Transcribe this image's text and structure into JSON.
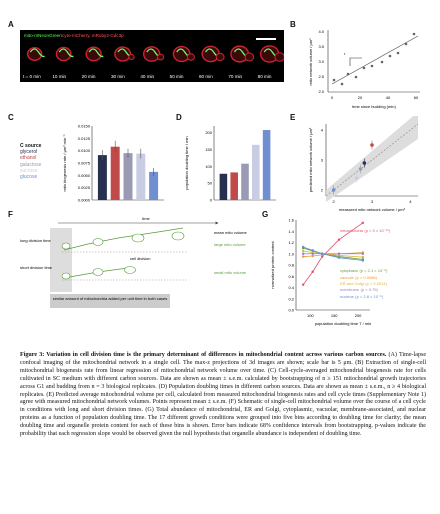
{
  "panelA": {
    "label": "A",
    "stain1": "mito-mNeonGreen",
    "stain2": "cyto-mCherry, mRuby2-Cdc3p",
    "timepoints": [
      "t = 0 min",
      "10 min",
      "20 min",
      "30 min",
      "40 min",
      "50 min",
      "60 min",
      "70 min",
      "80 min"
    ]
  },
  "panelB": {
    "label": "B",
    "ylabel": "mito network volume / μm³",
    "xlabel": "time since budding (min)",
    "slope_label": "r",
    "yticks": [
      "2.0",
      "2.5",
      "3.0",
      "3.5",
      "4.0"
    ],
    "xticks": [
      "0",
      "20",
      "40",
      "60"
    ]
  },
  "panelC": {
    "label": "C",
    "legend_title": "C source",
    "legend": [
      "glycerol",
      "ethanol",
      "galactose",
      "sucrose",
      "glucose"
    ],
    "legend_colors": [
      "#27304f",
      "#c04a4a",
      "#9a9ab5",
      "#c9cde3",
      "#6f8fd1"
    ],
    "ylabel": "mito biogenesis rate / μm³ min⁻¹",
    "yticks": [
      "0.0000",
      "0.0025",
      "0.0050",
      "0.0075",
      "0.0100",
      "0.0125",
      "0.0150"
    ]
  },
  "panelD": {
    "label": "D",
    "ylabel": "population doubling time / min",
    "yticks": [
      "0",
      "50",
      "100",
      "150",
      "200"
    ]
  },
  "panelE": {
    "label": "E",
    "ylabel": "predicted mito network volume / μm³",
    "xlabel": "measured mito network volume / μm³",
    "ticks": [
      "2",
      "3",
      "4"
    ]
  },
  "panelF": {
    "label": "F",
    "time": "time",
    "long": "long division time",
    "short": "short division time",
    "large": "large mito volume",
    "small": "small mito volume",
    "mean": "mean mito volume",
    "cell_division": "cell division",
    "note": "similar amount of mitochondria added per unit time in both cases"
  },
  "panelG": {
    "label": "G",
    "ylabel": "normalized protein content",
    "xlabel": "population doubling time T / min",
    "yticks": [
      "0.0",
      "0.2",
      "0.4",
      "0.6",
      "0.8",
      "1.0",
      "1.2",
      "1.4",
      "1.6"
    ],
    "xticks": [
      "100",
      "150",
      "200"
    ],
    "series": [
      {
        "name": "mitochondria",
        "p": "(p < 3 × 10⁻¹⁰)",
        "color": "#e0506a"
      },
      {
        "name": "cytoplasm",
        "p": "(p = 2.1 × 10⁻⁸)",
        "color": "#6a9c3a"
      },
      {
        "name": "vacuole",
        "p": "(p = 0.0066)",
        "color": "#e69b36"
      },
      {
        "name": "ER and Golgi",
        "p": "(p = 0.0014)",
        "color": "#d6b63c"
      },
      {
        "name": "membrane",
        "p": "(p = 0.79)",
        "color": "#9c7cc9"
      },
      {
        "name": "nucleus",
        "p": "(p = 2.8 × 10⁻⁵)",
        "color": "#5e8fd6"
      }
    ]
  },
  "chart_data": [
    {
      "type": "bar",
      "categories": [
        "glycerol",
        "ethanol",
        "galactose",
        "sucrose",
        "glucose"
      ],
      "values": [
        0.0091,
        0.0108,
        0.0095,
        0.0094,
        0.0057
      ],
      "errors": [
        0.001,
        0.0012,
        0.0009,
        0.001,
        0.0008
      ],
      "ylabel": "mito biogenesis rate / μm³ min⁻¹",
      "ylim": [
        0,
        0.015
      ]
    },
    {
      "type": "bar",
      "categories": [
        "glycerol",
        "ethanol",
        "galactose",
        "sucrose",
        "glucose"
      ],
      "values": [
        78,
        82,
        108,
        164,
        208
      ],
      "ylabel": "population doubling time / min",
      "ylim": [
        0,
        220
      ]
    },
    {
      "type": "scatter",
      "x": [
        2.0,
        2.6,
        2.7,
        2.8,
        3.0
      ],
      "y": [
        2.0,
        2.4,
        2.7,
        2.9,
        3.5
      ],
      "xlabel": "measured mito network volume / μm³",
      "ylabel": "predicted mito network volume / μm³"
    },
    {
      "type": "line",
      "x": [
        85,
        105,
        125,
        160,
        210
      ],
      "series": [
        {
          "name": "mitochondria",
          "values": [
            0.45,
            0.68,
            0.95,
            1.25,
            1.55
          ]
        },
        {
          "name": "cytoplasm",
          "values": [
            1.1,
            1.05,
            1.0,
            0.95,
            0.9
          ]
        },
        {
          "name": "vacuole",
          "values": [
            0.95,
            0.96,
            0.98,
            1.0,
            1.02
          ]
        },
        {
          "name": "ER and Golgi",
          "values": [
            1.05,
            1.02,
            1.0,
            0.97,
            0.94
          ]
        },
        {
          "name": "membrane",
          "values": [
            1.0,
            1.0,
            1.0,
            1.0,
            1.0
          ]
        },
        {
          "name": "nucleus",
          "values": [
            1.12,
            1.06,
            1.0,
            0.93,
            0.88
          ]
        }
      ],
      "xlabel": "population doubling time T / min",
      "ylabel": "normalized protein content",
      "ylim": [
        0,
        1.6
      ]
    }
  ],
  "caption": {
    "title": "Figure 3: Variation in cell division time is the primary determinant of differences in mitochondrial content across various carbon sources.",
    "A": "(A) Time-lapse confocal imaging of the mitochondrial network in a single cell. The max-z projections of 3d images are shown; scale bar is 5 μm.",
    "B": "(B) Extraction of single-cell mitochondrial biogenesis rate from linear regression of mitochondrial network volume over time.",
    "C": "(C) Cell-cycle-averaged mitochondrial biogenesis rate for cells cultivated in SC medium with different carbon sources. Data are shown as mean ± s.e.m. calculated by bootstrapping of n ≥ 151 mitochondrial growth trajectories across G1 and budding from n = 3 biological replicates.",
    "D": "(D) Population doubling times in different carbon sources. Data are shown as mean ± s.e.m., n ≥ 4 biological replicates.",
    "E": "(E) Predicted average mitochondrial volume per cell, calculated from measured mitochondrial biogenesis rates and cell cycle times (Supplementary Note 1) agree with measured mitochondrial network volumes. Points represent mean ± s.e.m.",
    "F": "(F) Schematic of single-cell mitochondrial volume over the course of a cell cycle in conditions with long and short division times.",
    "G": "(G) Total abundance of mitochondrial, ER and Golgi, cytoplasmic, vacuolar, membrane-associated, and nuclear proteins as a function of population doubling time. The 17 different growth conditions were grouped into five bins according to doubling time for clarity; the mean doubling time and organelle protein content for each of these bins is shown. Error bars indicate 68% confidence intervals from bootstrapping. p-values indicate the probability that each regression slope would be observed given the null hypothesis that organelle abundance is independent of doubling time."
  }
}
